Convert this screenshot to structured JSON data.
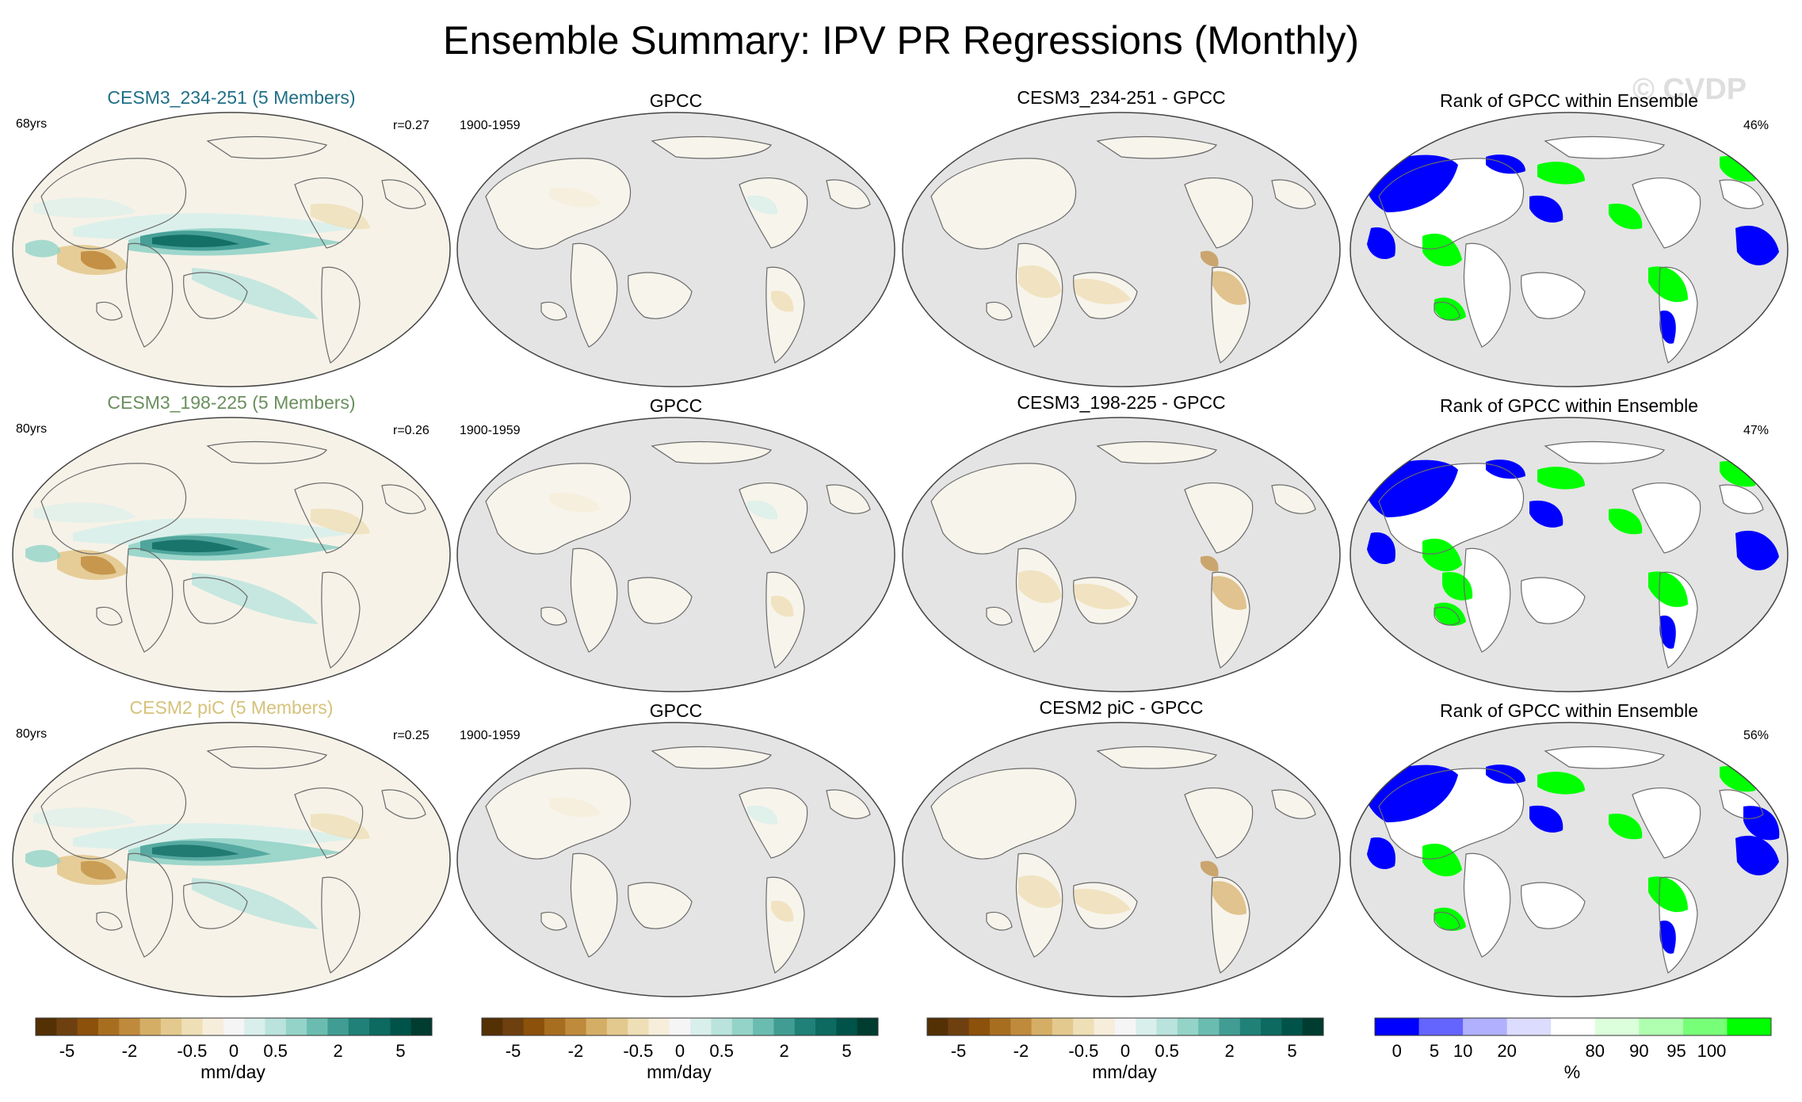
{
  "figure": {
    "title": "Ensemble Summary: IPV PR Regressions (Monthly)",
    "watermark": "© CVDP"
  },
  "rows": [
    {
      "model_title": "CESM3_234-251 (5 Members)",
      "model_title_color": "#1f6f86",
      "years": "68yrs",
      "r": "r=0.27",
      "obs_title": "GPCC",
      "obs_period": "1900-1959",
      "diff_title": "CESM3_234-251 - GPCC",
      "rank_title": "Rank of GPCC within Ensemble",
      "rank_pct": "46%"
    },
    {
      "model_title": "CESM3_198-225 (5 Members)",
      "model_title_color": "#6a8f5e",
      "years": "80yrs",
      "r": "r=0.26",
      "obs_title": "GPCC",
      "obs_period": "1900-1959",
      "diff_title": "CESM3_198-225 - GPCC",
      "rank_title": "Rank of GPCC within Ensemble",
      "rank_pct": "47%"
    },
    {
      "model_title": "CESM2 piC (5 Members)",
      "model_title_color": "#d6c27a",
      "years": "80yrs",
      "r": "r=0.25",
      "obs_title": "GPCC",
      "obs_period": "1900-1959",
      "diff_title": "CESM2 piC - GPCC",
      "rank_title": "Rank of GPCC within Ensemble",
      "rank_pct": "56%"
    }
  ],
  "colorbars": {
    "precip": {
      "units": "mm/day",
      "tick_labels": [
        "-5",
        "-2",
        "-0.5",
        "0",
        "0.5",
        "2",
        "5"
      ],
      "colors": [
        "#543005",
        "#6e4010",
        "#8c510a",
        "#a86e1f",
        "#bf8a3c",
        "#d5ae66",
        "#e4c98e",
        "#efdfb6",
        "#f6eedb",
        "#f5f5f5",
        "#d9efeb",
        "#b9e3dc",
        "#94d3c8",
        "#6bbcb0",
        "#419d93",
        "#1f8178",
        "#0c6a60",
        "#005349",
        "#003c30"
      ]
    },
    "rank": {
      "units": "%",
      "tick_labels": [
        "0",
        "5",
        "10",
        "20",
        "80",
        "90",
        "95",
        "100"
      ],
      "colors": [
        "#0000ff",
        "#6464ff",
        "#b0b0ff",
        "#dcdcff",
        "#ffffff",
        "#dcffdc",
        "#b0ffb0",
        "#78ff78",
        "#00ff00"
      ]
    }
  },
  "chart_data": [
    {
      "type": "heatmap",
      "title": "Ensemble Summary: IPV PR Regressions (Monthly)",
      "variable": "IPV PR regression",
      "units": "mm/day",
      "color_levels": [
        "-5",
        "-2",
        "-0.5",
        "0",
        "0.5",
        "2",
        "5"
      ],
      "panels": [
        {
          "row": 1,
          "title": "CESM3_234-251 (5 Members)",
          "years": "68yrs",
          "r": "r=0.27"
        },
        {
          "row": 1,
          "title": "GPCC",
          "period": "1900-1959"
        },
        {
          "row": 1,
          "title": "CESM3_234-251 - GPCC"
        },
        {
          "row": 2,
          "title": "CESM3_198-225 (5 Members)",
          "years": "80yrs",
          "r": "r=0.26"
        },
        {
          "row": 2,
          "title": "GPCC",
          "period": "1900-1959"
        },
        {
          "row": 2,
          "title": "CESM3_198-225 - GPCC"
        },
        {
          "row": 3,
          "title": "CESM2 piC (5 Members)",
          "years": "80yrs",
          "r": "r=0.25"
        },
        {
          "row": 3,
          "title": "GPCC",
          "period": "1900-1959"
        },
        {
          "row": 3,
          "title": "CESM2 piC - GPCC"
        }
      ]
    },
    {
      "type": "heatmap",
      "title": "Rank of GPCC within Ensemble",
      "units": "%",
      "color_levels": [
        "0",
        "5",
        "10",
        "20",
        "80",
        "90",
        "95",
        "100"
      ],
      "panels": [
        {
          "row": 1,
          "title": "Rank of GPCC within Ensemble",
          "value": "46%"
        },
        {
          "row": 2,
          "title": "Rank of GPCC within Ensemble",
          "value": "47%"
        },
        {
          "row": 3,
          "title": "Rank of GPCC within Ensemble",
          "value": "56%"
        }
      ]
    }
  ]
}
